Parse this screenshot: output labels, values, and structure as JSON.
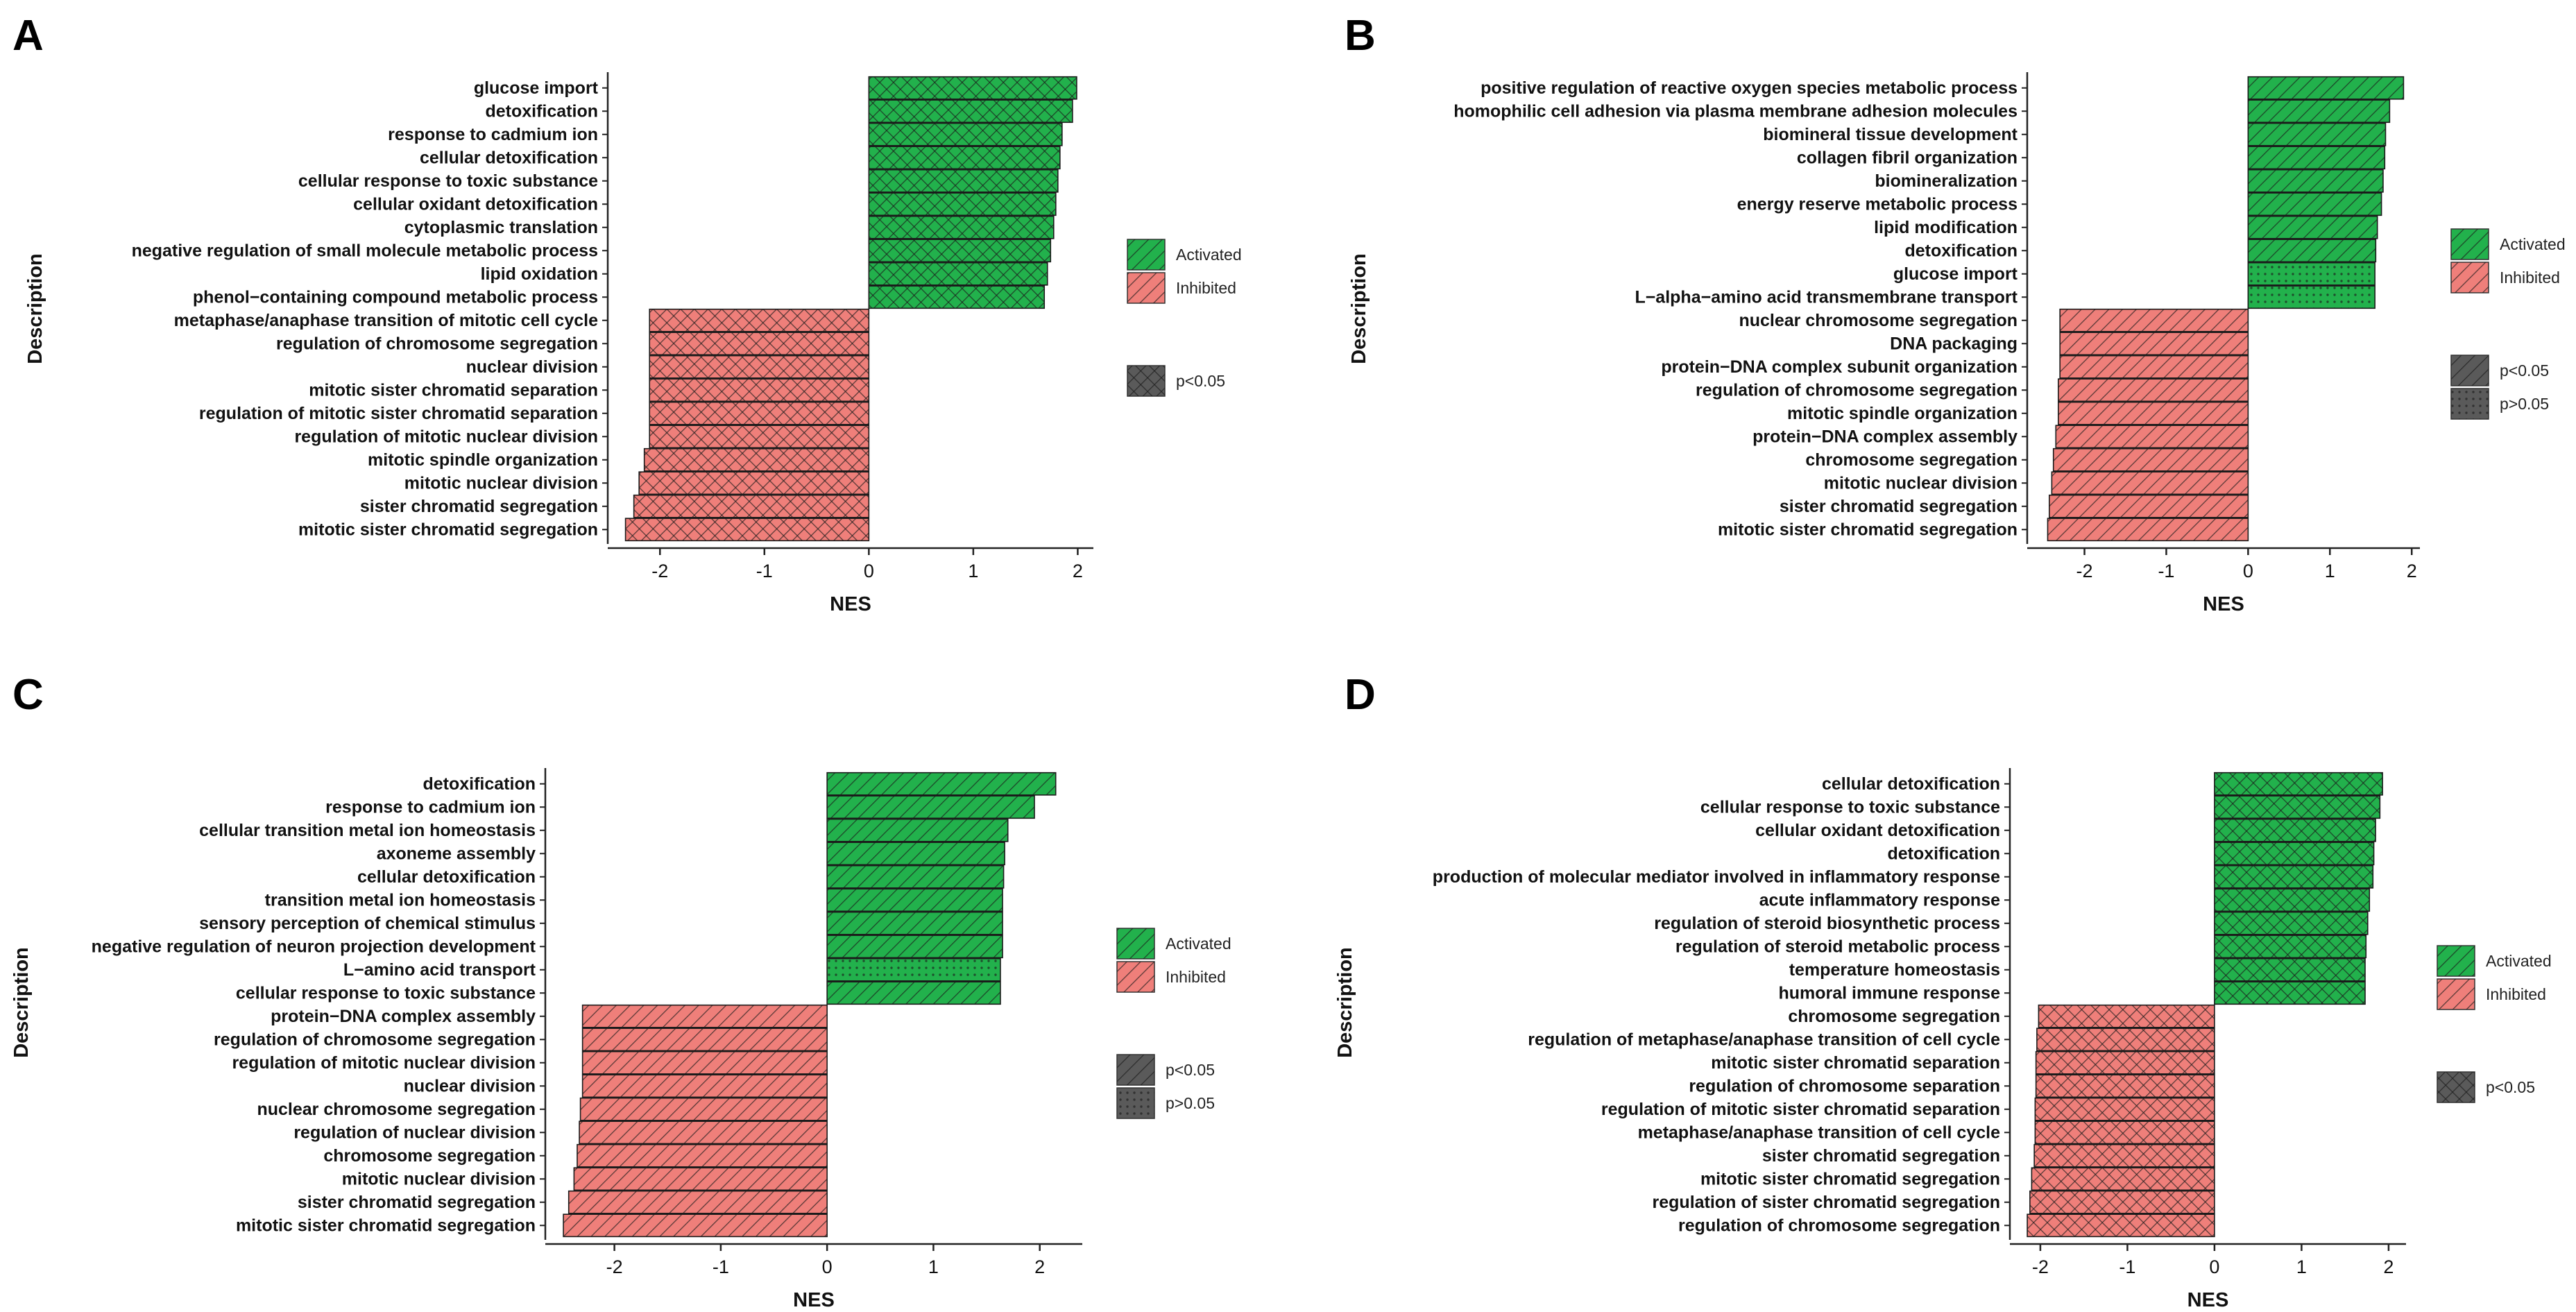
{
  "legend_labels": {
    "activated": "Activated",
    "inhibited": "Inhibited",
    "p_lt": "p<0.05",
    "p_gt": "p>0.05"
  },
  "colors": {
    "activated": "#22b14c",
    "inhibited": "#ef7f7a",
    "axis": "#222222",
    "bar_outline": "#1b1b1b"
  },
  "chart_data": [
    {
      "panel": "A",
      "type": "bar",
      "orientation": "horizontal",
      "xlabel": "NES",
      "ylabel": "Description",
      "xlim": [
        -2.5,
        2.15
      ],
      "xticks": [
        -2,
        -1,
        0,
        1,
        2
      ],
      "legend_significance": [
        "p<0.05"
      ],
      "categories": [
        "glucose import",
        "detoxification",
        "response to cadmium ion",
        "cellular detoxification",
        "cellular response to toxic substance",
        "cellular oxidant detoxification",
        "cytoplasmic translation",
        "negative regulation of small molecule metabolic process",
        "lipid oxidation",
        "phenol−containing compound metabolic process",
        "metaphase/anaphase transition of mitotic cell cycle",
        "regulation of chromosome segregation",
        "nuclear division",
        "mitotic sister chromatid separation",
        "regulation of mitotic sister chromatid separation",
        "regulation of mitotic nuclear division",
        "mitotic spindle organization",
        "mitotic nuclear division",
        "sister chromatid segregation",
        "mitotic sister chromatid segregation"
      ],
      "values": [
        1.99,
        1.95,
        1.85,
        1.83,
        1.81,
        1.79,
        1.77,
        1.74,
        1.71,
        1.68,
        -2.1,
        -2.1,
        -2.1,
        -2.1,
        -2.1,
        -2.1,
        -2.15,
        -2.2,
        -2.25,
        -2.33
      ],
      "significant": [
        true,
        true,
        true,
        true,
        true,
        true,
        true,
        true,
        true,
        true,
        true,
        true,
        true,
        true,
        true,
        true,
        true,
        true,
        true,
        true
      ]
    },
    {
      "panel": "B",
      "type": "bar",
      "orientation": "horizontal",
      "xlabel": "NES",
      "ylabel": "Description",
      "xlim": [
        -2.7,
        2.1
      ],
      "xticks": [
        -2,
        -1,
        0,
        1,
        2
      ],
      "legend_significance": [
        "p<0.05",
        "p>0.05"
      ],
      "categories": [
        "positive regulation of reactive oxygen species metabolic process",
        "homophilic cell adhesion via plasma membrane adhesion molecules",
        "biomineral tissue development",
        "collagen fibril organization",
        "biomineralization",
        "energy reserve metabolic process",
        "lipid modification",
        "detoxification",
        "glucose import",
        "L−alpha−amino acid transmembrane transport",
        "nuclear chromosome segregation",
        "DNA packaging",
        "protein−DNA complex subunit organization",
        "regulation of chromosome segregation",
        "mitotic spindle organization",
        "protein−DNA complex assembly",
        "chromosome segregation",
        "mitotic nuclear division",
        "sister chromatid segregation",
        "mitotic sister chromatid segregation"
      ],
      "values": [
        1.9,
        1.73,
        1.68,
        1.67,
        1.65,
        1.63,
        1.58,
        1.56,
        1.55,
        1.55,
        -2.3,
        -2.3,
        -2.3,
        -2.32,
        -2.32,
        -2.35,
        -2.38,
        -2.4,
        -2.43,
        -2.45
      ],
      "significant": [
        true,
        true,
        true,
        true,
        true,
        true,
        true,
        true,
        false,
        false,
        true,
        true,
        true,
        true,
        true,
        true,
        true,
        true,
        true,
        true
      ]
    },
    {
      "panel": "C",
      "type": "bar",
      "orientation": "horizontal",
      "xlabel": "NES",
      "ylabel": "Description",
      "xlim": [
        -2.65,
        2.4
      ],
      "xticks": [
        -2,
        -1,
        0,
        1,
        2
      ],
      "legend_significance": [
        "p<0.05",
        "p>0.05"
      ],
      "categories": [
        "detoxification",
        "response to cadmium ion",
        "cellular transition metal ion homeostasis",
        "axoneme assembly",
        "cellular detoxification",
        "transition metal ion homeostasis",
        "sensory perception of chemical stimulus",
        "negative regulation of neuron projection development",
        "L−amino acid transport",
        "cellular response to toxic substance",
        "protein−DNA complex assembly",
        "regulation of chromosome segregation",
        "regulation of mitotic nuclear division",
        "nuclear division",
        "nuclear chromosome segregation",
        "regulation of nuclear division",
        "chromosome segregation",
        "mitotic nuclear division",
        "sister chromatid segregation",
        "mitotic sister chromatid segregation"
      ],
      "values": [
        2.15,
        1.95,
        1.7,
        1.67,
        1.66,
        1.65,
        1.65,
        1.65,
        1.63,
        1.63,
        -2.3,
        -2.3,
        -2.3,
        -2.3,
        -2.32,
        -2.33,
        -2.35,
        -2.38,
        -2.43,
        -2.48
      ],
      "significant": [
        true,
        true,
        true,
        true,
        true,
        true,
        true,
        true,
        false,
        true,
        true,
        true,
        true,
        true,
        true,
        true,
        true,
        true,
        true,
        true
      ]
    },
    {
      "panel": "D",
      "type": "bar",
      "orientation": "horizontal",
      "xlabel": "NES",
      "ylabel": "Description",
      "xlim": [
        -2.35,
        2.2
      ],
      "xticks": [
        -2,
        -1,
        0,
        1,
        2
      ],
      "legend_significance": [
        "p<0.05"
      ],
      "categories": [
        "cellular detoxification",
        "cellular response to toxic substance",
        "cellular oxidant detoxification",
        "detoxification",
        "production of molecular mediator involved in inflammatory response",
        "acute inflammatory response",
        "regulation of steroid biosynthetic process",
        "regulation of steroid metabolic process",
        "temperature homeostasis",
        "humoral immune response",
        "chromosome segregation",
        "regulation of metaphase/anaphase transition of cell cycle",
        "mitotic sister chromatid separation",
        "regulation of chromosome separation",
        "regulation of mitotic sister chromatid separation",
        "metaphase/anaphase transition of cell cycle",
        "sister chromatid segregation",
        "mitotic sister chromatid segregation",
        "regulation of sister chromatid segregation",
        "regulation of chromosome segregation"
      ],
      "values": [
        1.93,
        1.9,
        1.85,
        1.83,
        1.82,
        1.78,
        1.76,
        1.74,
        1.73,
        1.73,
        -2.02,
        -2.04,
        -2.05,
        -2.05,
        -2.06,
        -2.06,
        -2.07,
        -2.1,
        -2.12,
        -2.15
      ],
      "significant": [
        true,
        true,
        true,
        true,
        true,
        true,
        true,
        true,
        true,
        true,
        true,
        true,
        true,
        true,
        true,
        true,
        true,
        true,
        true,
        true
      ]
    }
  ]
}
